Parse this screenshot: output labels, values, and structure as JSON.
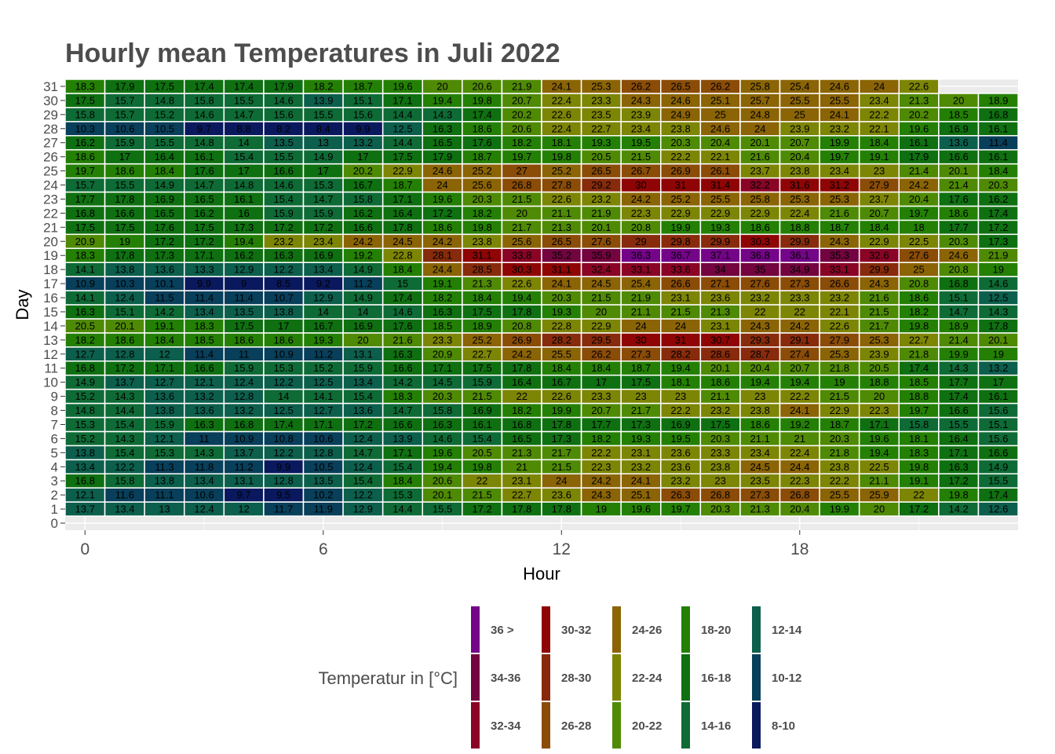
{
  "chart_data": {
    "type": "heatmap",
    "title": "Hourly mean Temperatures in Juli 2022",
    "xlabel": "Hour",
    "ylabel": "Day",
    "x_ticks": [
      "0",
      "6",
      "12",
      "18"
    ],
    "y_ticks": [
      "0",
      "1",
      "2",
      "3",
      "4",
      "5",
      "6",
      "7",
      "8",
      "9",
      "10",
      "11",
      "12",
      "13",
      "14",
      "15",
      "16",
      "17",
      "18",
      "19",
      "20",
      "21",
      "22",
      "23",
      "24",
      "25",
      "26",
      "27",
      "28",
      "29",
      "30",
      "31"
    ],
    "hours": [
      0,
      1,
      2,
      3,
      4,
      5,
      6,
      7,
      8,
      9,
      10,
      11,
      12,
      13,
      14,
      15,
      16,
      17,
      18,
      19,
      20,
      21,
      22,
      23
    ],
    "xlim": [
      -0.5,
      23.5
    ],
    "ylim": [
      -0.5,
      31.5
    ],
    "grid": true,
    "rows": [
      {
        "day": "1",
        "values": [
          "13.7",
          "13.4",
          "13",
          "12.4",
          "12",
          "11.7",
          "11.9",
          "12.9",
          "14.4",
          "15.5",
          "17.2",
          "17.8",
          "17.8",
          "19",
          "19.6",
          "19.7",
          "20.3",
          "21.3",
          "20.4",
          "19.9",
          "20",
          "17.2",
          "14.2",
          "12.6"
        ]
      },
      {
        "day": "2",
        "values": [
          "12.1",
          "11.6",
          "11.1",
          "10.6",
          "9.7",
          "9.5",
          "10.2",
          "12.2",
          "15.3",
          "20.1",
          "21.5",
          "22.7",
          "23.6",
          "24.3",
          "25.1",
          "26.3",
          "26.8",
          "27.3",
          "26.8",
          "25.5",
          "25.9",
          "22",
          "19.8",
          "17.4"
        ]
      },
      {
        "day": "3",
        "values": [
          "16.8",
          "15.8",
          "13.8",
          "13.4",
          "13.1",
          "12.8",
          "13.5",
          "15.4",
          "18.4",
          "20.6",
          "22",
          "23.1",
          "24",
          "24.2",
          "24.1",
          "23.2",
          "23",
          "23.5",
          "22.3",
          "22.2",
          "21.1",
          "19.1",
          "17.2",
          "15.5"
        ]
      },
      {
        "day": "4",
        "values": [
          "13.4",
          "12.2",
          "11.3",
          "11.8",
          "11.2",
          "9.9",
          "10.5",
          "12.4",
          "15.4",
          "19.4",
          "19.8",
          "21",
          "21.5",
          "22.3",
          "23.2",
          "23.6",
          "23.8",
          "24.5",
          "24.4",
          "23.8",
          "22.5",
          "19.8",
          "16.3",
          "14.9"
        ]
      },
      {
        "day": "5",
        "values": [
          "13.8",
          "15.4",
          "15.3",
          "14.3",
          "13.7",
          "12.2",
          "12.8",
          "14.7",
          "17.1",
          "19.6",
          "20.5",
          "21.3",
          "21.7",
          "22.2",
          "23.1",
          "23.6",
          "23.3",
          "23.4",
          "22.4",
          "21.8",
          "19.4",
          "18.3",
          "17.1",
          "16.6"
        ]
      },
      {
        "day": "6",
        "values": [
          "15.2",
          "14.3",
          "12.1",
          "11",
          "10.9",
          "10.8",
          "10.6",
          "12.4",
          "13.9",
          "14.6",
          "15.4",
          "16.5",
          "17.3",
          "18.2",
          "19.3",
          "19.5",
          "20.3",
          "21.1",
          "21",
          "20.3",
          "19.6",
          "18.1",
          "16.4",
          "15.6"
        ]
      },
      {
        "day": "7",
        "values": [
          "15.3",
          "15.4",
          "15.9",
          "16.3",
          "16.8",
          "17.4",
          "17.1",
          "17.2",
          "16.6",
          "16.3",
          "16.1",
          "16.8",
          "17.8",
          "17.7",
          "17.3",
          "16.9",
          "17.5",
          "18.6",
          "19.2",
          "18.7",
          "17.1",
          "15.8",
          "15.5",
          "15.1"
        ]
      },
      {
        "day": "8",
        "values": [
          "14.8",
          "14.4",
          "13.8",
          "13.6",
          "13.2",
          "12.5",
          "12.7",
          "13.6",
          "14.7",
          "15.8",
          "16.9",
          "18.2",
          "19.9",
          "20.7",
          "21.7",
          "22.2",
          "23.2",
          "23.8",
          "24.1",
          "22.9",
          "22.3",
          "19.7",
          "16.6",
          "15.6"
        ]
      },
      {
        "day": "9",
        "values": [
          "15.2",
          "14.3",
          "13.6",
          "13.2",
          "12.8",
          "14",
          "14.1",
          "15.4",
          "18.3",
          "20.3",
          "21.5",
          "22",
          "22.6",
          "23.3",
          "23",
          "23",
          "21.1",
          "23",
          "22.2",
          "21.5",
          "20",
          "18.8",
          "17.4",
          "16.1"
        ]
      },
      {
        "day": "10",
        "values": [
          "14.9",
          "13.7",
          "12.7",
          "12.1",
          "12.4",
          "12.2",
          "12.5",
          "13.4",
          "14.2",
          "14.5",
          "15.9",
          "16.4",
          "16.7",
          "17",
          "17.5",
          "18.1",
          "18.6",
          "19.4",
          "19.4",
          "19",
          "18.8",
          "18.5",
          "17.7",
          "17"
        ]
      },
      {
        "day": "11",
        "values": [
          "16.8",
          "17.2",
          "17.1",
          "16.6",
          "15.9",
          "15.3",
          "15.2",
          "15.9",
          "16.6",
          "17.1",
          "17.5",
          "17.8",
          "18.4",
          "18.4",
          "18.7",
          "19.4",
          "20.1",
          "20.4",
          "20.7",
          "21.8",
          "20.5",
          "17.4",
          "14.3",
          "13.2"
        ]
      },
      {
        "day": "12",
        "values": [
          "12.7",
          "12.8",
          "12",
          "11.4",
          "11",
          "10.9",
          "11.2",
          "13.1",
          "16.3",
          "20.9",
          "22.7",
          "24.2",
          "25.5",
          "26.2",
          "27.3",
          "28.2",
          "28.6",
          "28.7",
          "27.4",
          "25.3",
          "23.9",
          "21.8",
          "19.9",
          "19"
        ]
      },
      {
        "day": "13",
        "values": [
          "18.2",
          "18.6",
          "18.4",
          "18.5",
          "18.6",
          "18.6",
          "19.3",
          "20",
          "21.6",
          "23.3",
          "25.2",
          "26.9",
          "28.2",
          "29.5",
          "30",
          "31",
          "30.7",
          "29.3",
          "29.1",
          "27.9",
          "25.3",
          "22.7",
          "21.4",
          "20.1"
        ]
      },
      {
        "day": "14",
        "values": [
          "20.5",
          "20.1",
          "19.1",
          "18.3",
          "17.5",
          "17",
          "16.7",
          "16.9",
          "17.6",
          "18.5",
          "18.9",
          "20.8",
          "22.8",
          "22.9",
          "24",
          "24",
          "23.1",
          "24.3",
          "24.2",
          "22.6",
          "21.7",
          "19.8",
          "18.9",
          "17.8"
        ]
      },
      {
        "day": "15",
        "values": [
          "16.3",
          "15.1",
          "14.2",
          "13.4",
          "13.5",
          "13.8",
          "14",
          "14",
          "14.6",
          "16.3",
          "17.5",
          "17.8",
          "19.3",
          "20",
          "21.1",
          "21.5",
          "21.3",
          "22",
          "22",
          "22.1",
          "21.5",
          "18.2",
          "14.7",
          "14.3"
        ]
      },
      {
        "day": "16",
        "values": [
          "14.1",
          "12.4",
          "11.5",
          "11.4",
          "11.4",
          "10.7",
          "12.9",
          "14.9",
          "17.4",
          "18.2",
          "18.4",
          "19.4",
          "20.3",
          "21.5",
          "21.9",
          "23.1",
          "23.6",
          "23.2",
          "23.3",
          "23.2",
          "21.6",
          "18.6",
          "15.1",
          "12.5"
        ]
      },
      {
        "day": "17",
        "values": [
          "10.9",
          "10.3",
          "10.1",
          "9.9",
          "9",
          "8.5",
          "9.2",
          "11.2",
          "15",
          "19.1",
          "21.3",
          "22.6",
          "24.1",
          "24.5",
          "25.4",
          "26.6",
          "27.1",
          "27.6",
          "27.3",
          "26.6",
          "24.3",
          "20.8",
          "16.8",
          "14.6"
        ]
      },
      {
        "day": "18",
        "values": [
          "14.1",
          "13.8",
          "13.6",
          "13.3",
          "12.9",
          "12.2",
          "13.4",
          "14.9",
          "18.4",
          "24.4",
          "28.5",
          "30.3",
          "31.1",
          "32.4",
          "33.1",
          "33.6",
          "34",
          "35",
          "34.9",
          "33.1",
          "29.9",
          "25",
          "20.8",
          "19"
        ]
      },
      {
        "day": "19",
        "values": [
          "18.3",
          "17.8",
          "17.3",
          "17.1",
          "16.2",
          "16.3",
          "16.9",
          "19.2",
          "22.8",
          "28.1",
          "31.1",
          "33.8",
          "35.2",
          "35.9",
          "36.3",
          "36.7",
          "37.1",
          "36.8",
          "36.1",
          "35.3",
          "32.6",
          "27.6",
          "24.6",
          "21.9"
        ]
      },
      {
        "day": "20",
        "values": [
          "20.9",
          "19",
          "17.2",
          "17.2",
          "19.4",
          "23.2",
          "23.4",
          "24.2",
          "24.5",
          "24.2",
          "23.8",
          "25.6",
          "26.5",
          "27.6",
          "29",
          "29.8",
          "29.9",
          "30.3",
          "29.9",
          "24.3",
          "22.9",
          "22.5",
          "20.3",
          "17.3"
        ]
      },
      {
        "day": "21",
        "values": [
          "17.5",
          "17.5",
          "17.6",
          "17.5",
          "17.3",
          "17.2",
          "17.2",
          "16.6",
          "17.8",
          "18.6",
          "19.8",
          "21.7",
          "21.3",
          "20.1",
          "20.8",
          "19.9",
          "19.3",
          "18.6",
          "18.8",
          "18.7",
          "18.4",
          "18",
          "17.7",
          "17.2"
        ]
      },
      {
        "day": "22",
        "values": [
          "16.8",
          "16.6",
          "16.5",
          "16.2",
          "16",
          "15.9",
          "15.9",
          "16.2",
          "16.4",
          "17.2",
          "18.2",
          "20",
          "21.1",
          "21.9",
          "22.3",
          "22.9",
          "22.9",
          "22.9",
          "22.4",
          "21.6",
          "20.7",
          "19.7",
          "18.6",
          "17.4"
        ]
      },
      {
        "day": "23",
        "values": [
          "17.7",
          "17.8",
          "16.9",
          "16.5",
          "16.1",
          "15.4",
          "14.7",
          "15.8",
          "17.1",
          "19.6",
          "20.3",
          "21.5",
          "22.6",
          "23.2",
          "24.2",
          "25.2",
          "25.5",
          "25.8",
          "25.3",
          "25.3",
          "23.7",
          "20.4",
          "17.6",
          "16.2"
        ]
      },
      {
        "day": "24",
        "values": [
          "15.7",
          "15.5",
          "14.9",
          "14.7",
          "14.8",
          "14.6",
          "15.3",
          "16.7",
          "18.7",
          "24",
          "25.6",
          "26.8",
          "27.8",
          "29.2",
          "30",
          "31",
          "31.4",
          "32.2",
          "31.6",
          "31.2",
          "27.9",
          "24.2",
          "21.4",
          "20.3"
        ]
      },
      {
        "day": "25",
        "values": [
          "19.7",
          "18.6",
          "18.4",
          "17.6",
          "17",
          "16.6",
          "17",
          "20.2",
          "22.9",
          "24.6",
          "25.2",
          "27",
          "25.2",
          "26.5",
          "26.7",
          "26.9",
          "26.1",
          "23.7",
          "23.8",
          "23.4",
          "23",
          "21.4",
          "20.1",
          "18.4"
        ]
      },
      {
        "day": "26",
        "values": [
          "18.6",
          "17",
          "16.4",
          "16.1",
          "15.4",
          "15.5",
          "14.9",
          "17",
          "17.5",
          "17.9",
          "18.7",
          "19.7",
          "19.8",
          "20.5",
          "21.5",
          "22.2",
          "22.1",
          "21.6",
          "20.4",
          "19.7",
          "19.1",
          "17.9",
          "16.6",
          "16.1"
        ]
      },
      {
        "day": "27",
        "values": [
          "16.2",
          "15.9",
          "15.5",
          "14.8",
          "14",
          "13.5",
          "13",
          "13.2",
          "14.4",
          "16.5",
          "17.6",
          "18.2",
          "18.1",
          "19.3",
          "19.5",
          "20.3",
          "20.4",
          "20.1",
          "20.7",
          "19.9",
          "18.4",
          "16.1",
          "13.6",
          "11.4"
        ]
      },
      {
        "day": "28",
        "values": [
          "10.3",
          "10.6",
          "10.5",
          "9.7",
          "8.8",
          "8.2",
          "8.4",
          "9.9",
          "12.5",
          "16.3",
          "18.6",
          "20.6",
          "22.4",
          "22.7",
          "23.4",
          "23.8",
          "24.6",
          "24",
          "23.9",
          "23.2",
          "22.1",
          "19.6",
          "16.9",
          "16.1"
        ]
      },
      {
        "day": "29",
        "values": [
          "15.8",
          "15.7",
          "15.2",
          "14.6",
          "14.7",
          "15.6",
          "15.5",
          "15.6",
          "14.4",
          "14.3",
          "17.4",
          "20.2",
          "22.6",
          "23.5",
          "23.9",
          "24.9",
          "25",
          "24.8",
          "25",
          "24.1",
          "22.2",
          "20.2",
          "18.5",
          "16.8"
        ]
      },
      {
        "day": "30",
        "values": [
          "17.5",
          "15.7",
          "14.8",
          "15.8",
          "15.5",
          "14.6",
          "13.9",
          "15.1",
          "17.1",
          "19.4",
          "19.8",
          "20.7",
          "22.4",
          "23.3",
          "24.3",
          "24.6",
          "25.1",
          "25.7",
          "25.5",
          "25.5",
          "23.4",
          "21.3",
          "20",
          "18.9"
        ]
      },
      {
        "day": "31",
        "values": [
          "18.3",
          "17.9",
          "17.5",
          "17.4",
          "17.4",
          "17.9",
          "18.2",
          "18.7",
          "19.6",
          "20",
          "20.6",
          "21.9",
          "24.1",
          "25.3",
          "26.2",
          "26.5",
          "26.2",
          "25.8",
          "25.4",
          "24.6",
          "24",
          "22.6",
          null,
          null
        ]
      }
    ],
    "legend": {
      "title": "Temperatur in [°C]",
      "placement": "bottom",
      "columns": [
        [
          {
            "label": "36 >",
            "color": "#740488"
          },
          {
            "label": "34-36",
            "color": "#73043f"
          },
          {
            "label": "32-34",
            "color": "#8a0426"
          }
        ],
        [
          {
            "label": "30-32",
            "color": "#8f0505"
          },
          {
            "label": "28-30",
            "color": "#872b0c"
          },
          {
            "label": "26-28",
            "color": "#8a4c07"
          }
        ],
        [
          {
            "label": "24-26",
            "color": "#8b6405"
          },
          {
            "label": "22-24",
            "color": "#7d8505"
          },
          {
            "label": "20-22",
            "color": "#4f8a04"
          }
        ],
        [
          {
            "label": "18-20",
            "color": "#248004"
          },
          {
            "label": "16-18",
            "color": "#0f7011"
          },
          {
            "label": "14-16",
            "color": "#0e6b36"
          }
        ],
        [
          {
            "label": "12-14",
            "color": "#0c5f4c"
          },
          {
            "label": "10-12",
            "color": "#083f5a"
          },
          {
            "label": "8-10",
            "color": "#0a195e"
          }
        ]
      ]
    }
  }
}
